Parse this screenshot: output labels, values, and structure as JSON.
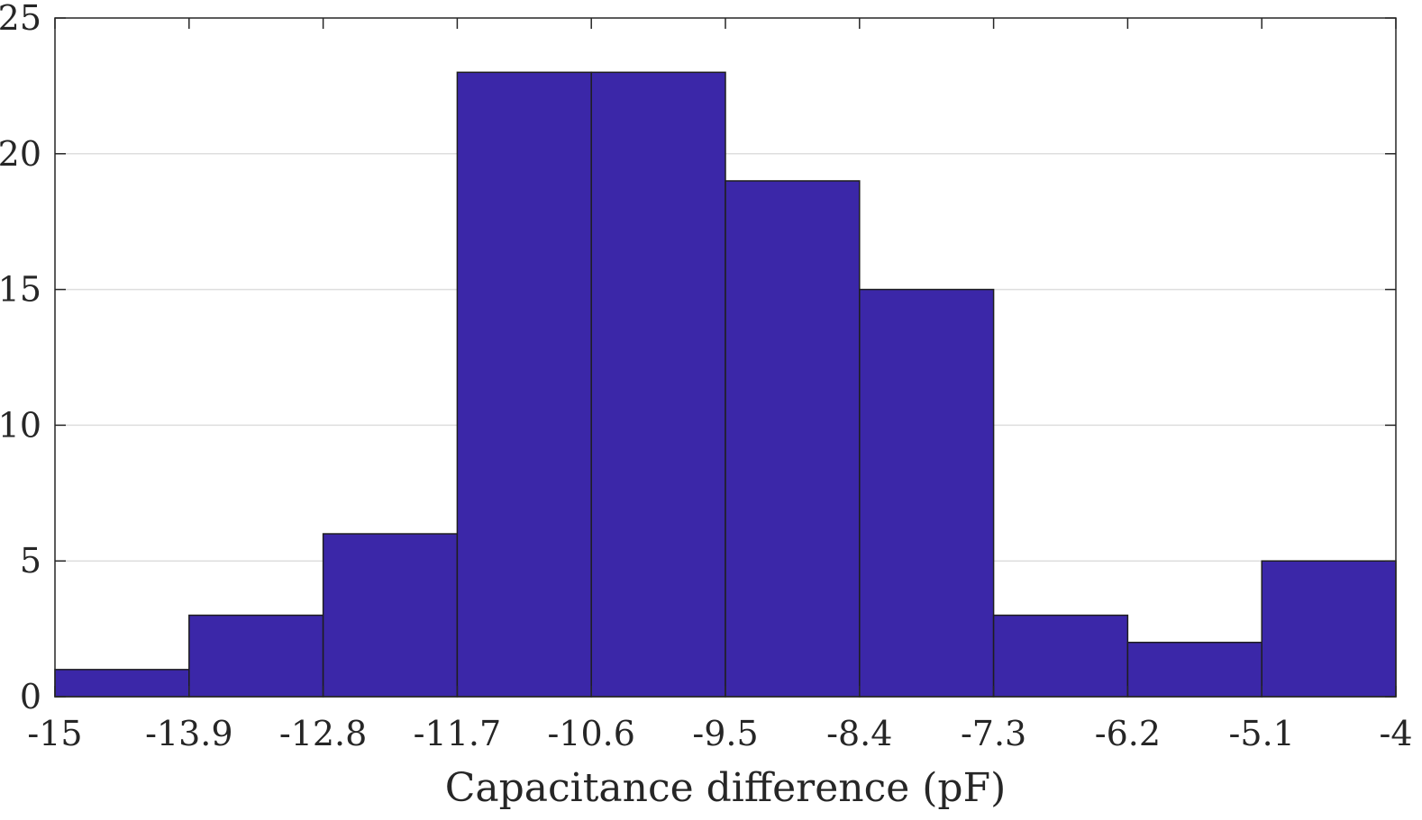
{
  "chart_data": {
    "type": "bar",
    "subtype": "histogram",
    "title": "",
    "xlabel": "Capacitance difference (pF)",
    "ylabel": "",
    "bin_edges": [
      -15,
      -13.9,
      -12.8,
      -11.7,
      -10.6,
      -9.5,
      -8.4,
      -7.3,
      -6.2,
      -5.1,
      -4
    ],
    "x_tick_labels": [
      "-15",
      "-13.9",
      "-12.8",
      "-11.7",
      "-10.6",
      "-9.5",
      "-8.4",
      "-7.3",
      "-6.2",
      "-5.1",
      "-4"
    ],
    "values": [
      1,
      3,
      6,
      23,
      23,
      19,
      15,
      3,
      2,
      5
    ],
    "xlim": [
      -15,
      -4
    ],
    "ylim": [
      0,
      25
    ],
    "y_ticks": [
      0,
      5,
      10,
      15,
      20,
      25
    ],
    "y_tick_labels": [
      "0",
      "5",
      "10",
      "15",
      "20",
      "25"
    ],
    "grid": "horizontal",
    "bar_color": "#3b27a8"
  }
}
